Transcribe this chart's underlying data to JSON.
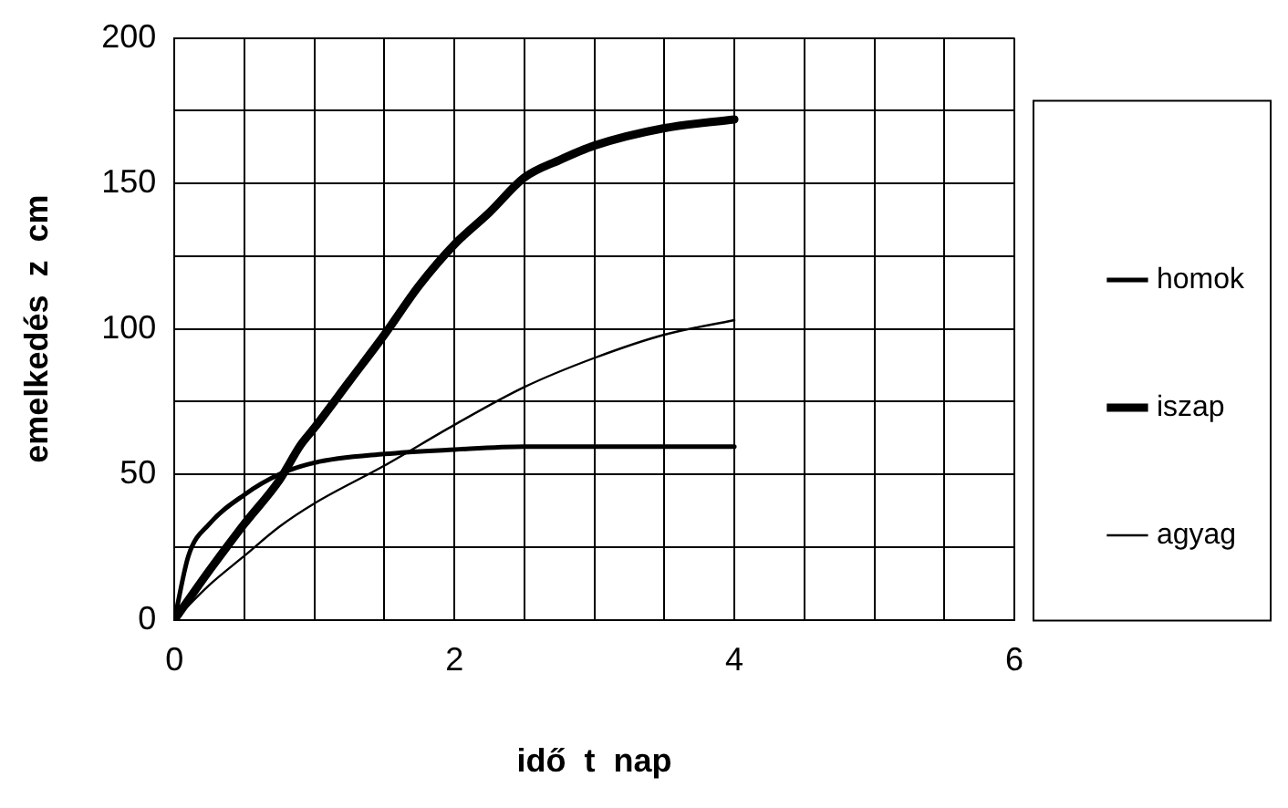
{
  "chart_data": {
    "type": "line",
    "xlabel": "idő  t  nap",
    "ylabel": "emelkedés  z  cm",
    "xlim": [
      0,
      6
    ],
    "ylim": [
      0,
      200
    ],
    "xticks": [
      0,
      {
        "value": 0.5,
        "label": null
      },
      {
        "value": 1,
        "label": null
      },
      {
        "value": 1.5,
        "label": null
      },
      2,
      {
        "value": 2.5,
        "label": null
      },
      {
        "value": 3,
        "label": null
      },
      {
        "value": 3.5,
        "label": null
      },
      4,
      {
        "value": 4.5,
        "label": null
      },
      {
        "value": 5,
        "label": null
      },
      {
        "value": 5.5,
        "label": null
      },
      6
    ],
    "yticks": [
      0,
      {
        "value": 25,
        "label": null
      },
      50,
      {
        "value": 75,
        "label": null
      },
      100,
      {
        "value": 125,
        "label": null
      },
      150,
      {
        "value": 175,
        "label": null
      },
      200
    ],
    "grid": true,
    "legend": "right",
    "marker": "none",
    "line_style": "solid",
    "series": [
      {
        "name": "homok",
        "color": "#000000",
        "x": [
          0,
          0.1,
          0.25,
          0.5,
          0.75,
          1,
          1.5,
          2,
          2.5,
          3,
          4
        ],
        "values": [
          0,
          22,
          33,
          43,
          50,
          54,
          57,
          58.5,
          59.5,
          59.5,
          59.5
        ]
      },
      {
        "name": "iszap",
        "color": "#000000",
        "x": [
          0,
          0.25,
          0.5,
          0.75,
          0.9,
          1,
          1.25,
          1.5,
          1.75,
          2,
          2.25,
          2.5,
          2.75,
          3,
          3.5,
          4
        ],
        "values": [
          0,
          17,
          33,
          48,
          60,
          66,
          82,
          98,
          115,
          129,
          140,
          152,
          158,
          163,
          169,
          172
        ]
      },
      {
        "name": "agyag",
        "color": "#000000",
        "x": [
          0,
          0.25,
          0.5,
          0.75,
          1,
          1.5,
          2,
          2.5,
          3,
          3.5,
          4
        ],
        "values": [
          0,
          12,
          22,
          32,
          40,
          53,
          67,
          80,
          90,
          98,
          103
        ]
      }
    ]
  }
}
